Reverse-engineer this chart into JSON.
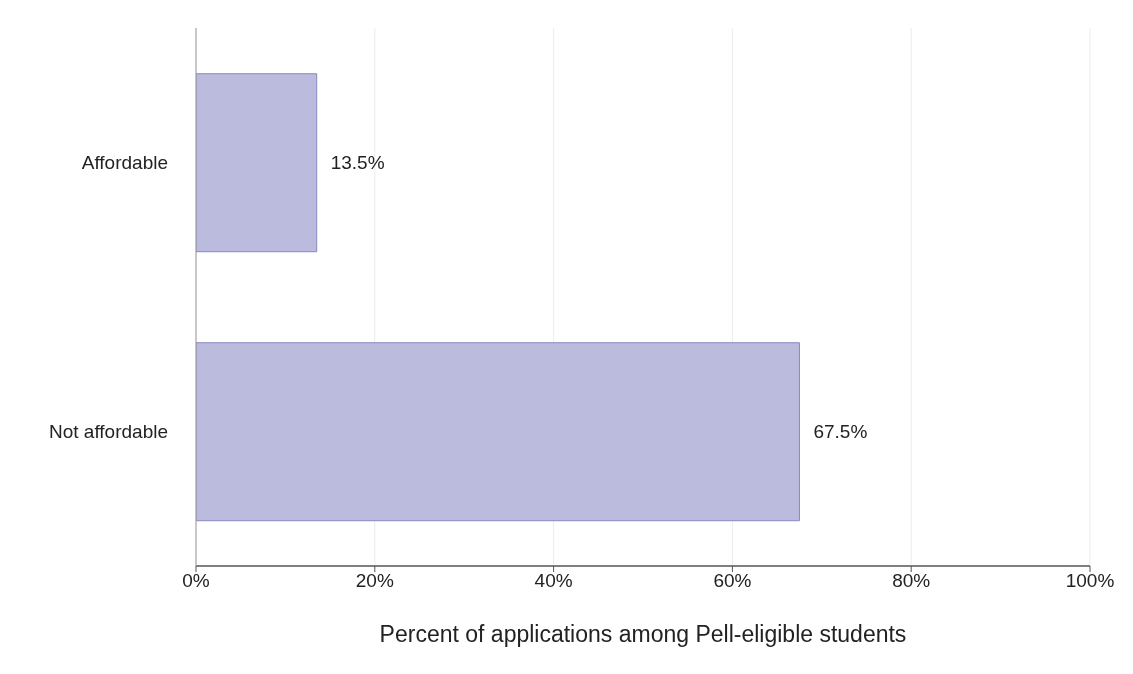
{
  "chart_data": {
    "type": "bar",
    "orientation": "horizontal",
    "xlabel": "Percent of applications among Pell-eligible students",
    "categories": [
      "Affordable",
      "Not affordable"
    ],
    "values": [
      13.5,
      67.5
    ],
    "value_labels": [
      "13.5%",
      "67.5%"
    ],
    "color": "#bbbbdd",
    "xlim": [
      0,
      100
    ],
    "xticks": [
      {
        "value": 0,
        "label": "0%"
      },
      {
        "value": 20,
        "label": "20%"
      },
      {
        "value": 40,
        "label": "40%"
      },
      {
        "value": 60,
        "label": "60%"
      },
      {
        "value": 80,
        "label": "80%"
      },
      {
        "value": 100,
        "label": "100%"
      }
    ],
    "grid": "x"
  }
}
